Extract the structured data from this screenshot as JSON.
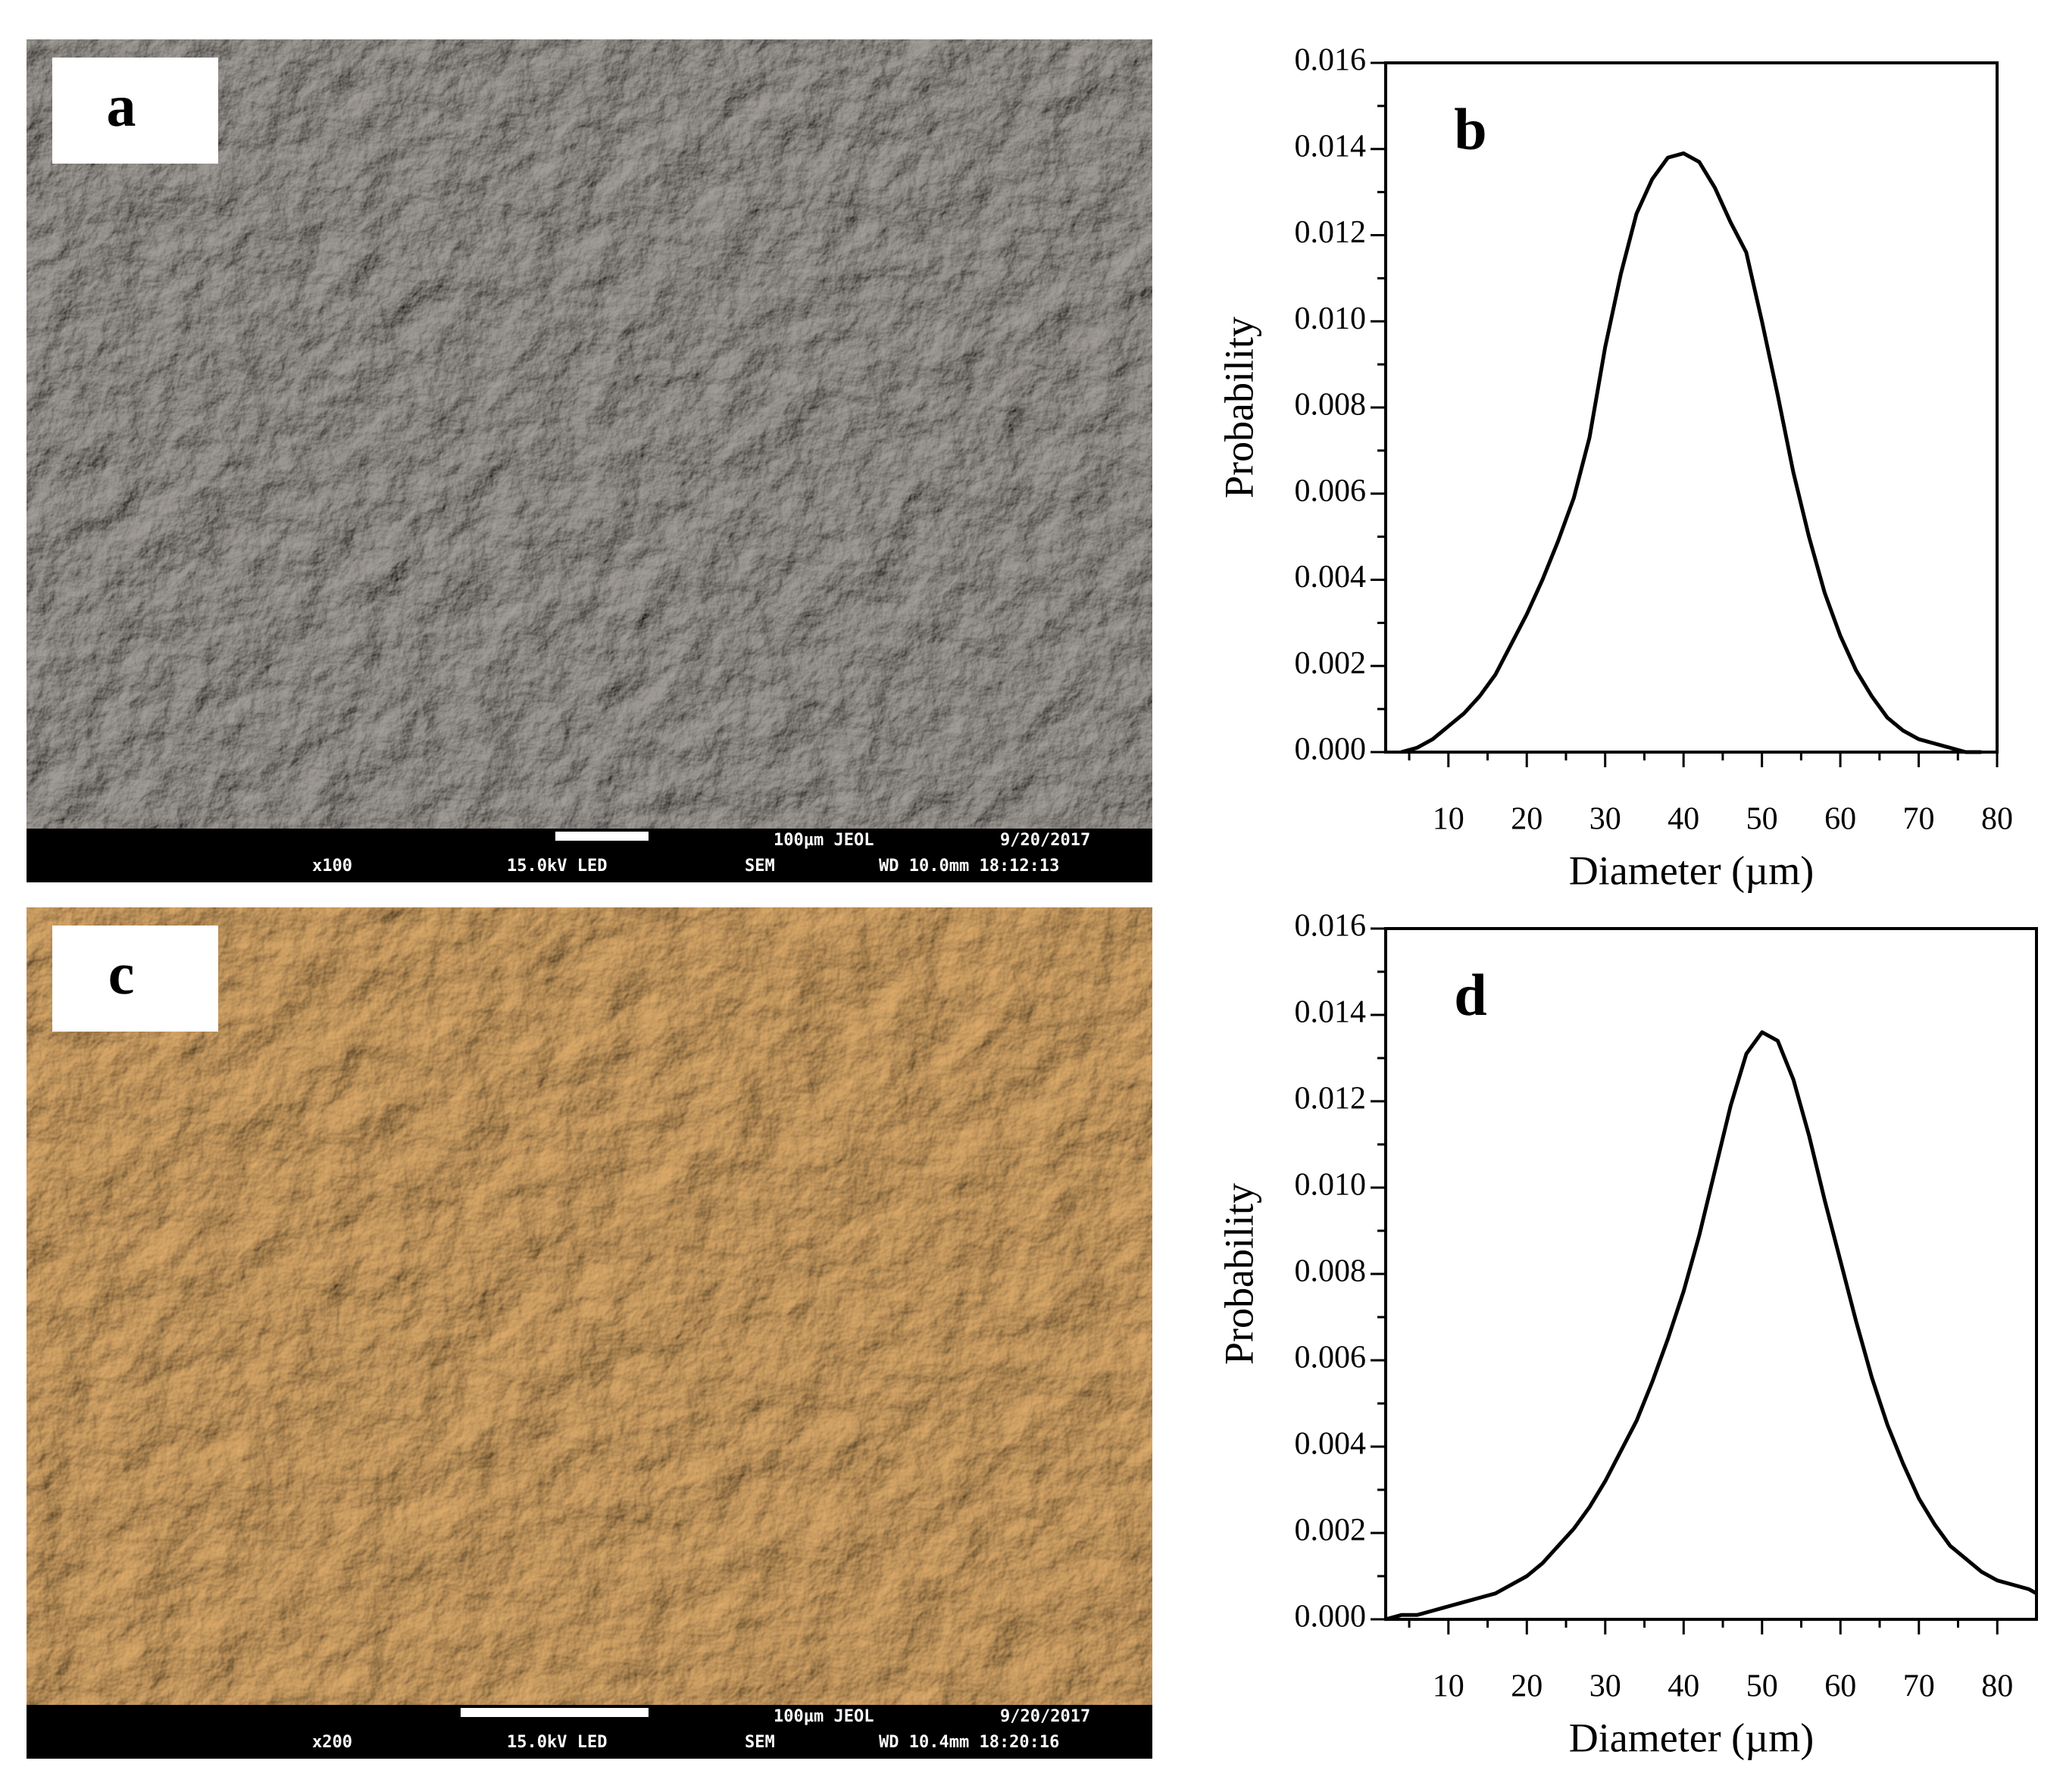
{
  "panels": [
    {
      "label": "a",
      "info_bar": [
        "100µm JEOL",
        "9/20/2017",
        "x100",
        "15.0kV LED",
        "SEM",
        "WD 10.0mm 18:12:13"
      ]
    },
    {
      "label": "c",
      "info_bar": [
        "100µm JEOL",
        "9/20/2017",
        "x200",
        "15.0kV LED",
        "SEM",
        "WD 10.4mm 18:20:16"
      ]
    }
  ],
  "chart_data": [
    {
      "type": "line",
      "panel_label": "b",
      "x_label": "Diameter (µm)",
      "y_label": "Probability",
      "color": "#000000",
      "xlim": [
        2,
        80
      ],
      "xticks": [
        10,
        20,
        30,
        40,
        50,
        60,
        70,
        80
      ],
      "xminorticks": [
        5,
        15,
        25,
        35,
        45,
        55,
        65,
        75
      ],
      "ylim": [
        0,
        0.016
      ],
      "yticks": [
        {
          "value": 0,
          "label": "0.000"
        },
        {
          "value": 0.002,
          "label": "0.002"
        },
        {
          "value": 0.004,
          "label": "0.004"
        },
        {
          "value": 0.006,
          "label": "0.006"
        },
        {
          "value": 0.008,
          "label": "0.008"
        },
        {
          "value": 0.01,
          "label": "0.010"
        },
        {
          "value": 0.012,
          "label": "0.012"
        },
        {
          "value": 0.014,
          "label": "0.014"
        },
        {
          "value": 0.016,
          "label": "0.016"
        }
      ],
      "yminorticks": [
        0.001,
        0.003,
        0.005,
        0.007,
        0.009,
        0.011,
        0.013,
        0.015
      ],
      "x": [
        4,
        6,
        8,
        10,
        12,
        14,
        16,
        18,
        20,
        22,
        24,
        26,
        28,
        30,
        32,
        34,
        36,
        38,
        40,
        42,
        44,
        46,
        48,
        50,
        52,
        54,
        56,
        58,
        60,
        62,
        64,
        66,
        68,
        70,
        72,
        74,
        76,
        78
      ],
      "values": [
        0.0,
        0.0001,
        0.0003,
        0.0006,
        0.0009,
        0.0013,
        0.0018,
        0.0025,
        0.0032,
        0.004,
        0.0049,
        0.0059,
        0.0073,
        0.0094,
        0.0111,
        0.0125,
        0.0133,
        0.0138,
        0.0139,
        0.0137,
        0.0131,
        0.0123,
        0.0116,
        0.01,
        0.0083,
        0.0065,
        0.005,
        0.0037,
        0.0027,
        0.0019,
        0.0013,
        0.0008,
        0.0005,
        0.0003,
        0.0002,
        0.0001,
        0.0,
        0.0
      ]
    },
    {
      "type": "line",
      "panel_label": "d",
      "x_label": "Diameter (µm)",
      "y_label": "Probability",
      "color": "#000000",
      "xlim": [
        2,
        85
      ],
      "xticks": [
        10,
        20,
        30,
        40,
        50,
        60,
        70,
        80
      ],
      "xminorticks": [
        5,
        15,
        25,
        35,
        45,
        55,
        65,
        75
      ],
      "ylim": [
        0,
        0.016
      ],
      "yticks": [
        {
          "value": 0,
          "label": "0.000"
        },
        {
          "value": 0.002,
          "label": "0.002"
        },
        {
          "value": 0.004,
          "label": "0.004"
        },
        {
          "value": 0.006,
          "label": "0.006"
        },
        {
          "value": 0.008,
          "label": "0.008"
        },
        {
          "value": 0.01,
          "label": "0.010"
        },
        {
          "value": 0.012,
          "label": "0.012"
        },
        {
          "value": 0.014,
          "label": "0.014"
        },
        {
          "value": 0.016,
          "label": "0.016"
        }
      ],
      "yminorticks": [
        0.001,
        0.003,
        0.005,
        0.007,
        0.009,
        0.011,
        0.013,
        0.015
      ],
      "x": [
        2,
        4,
        6,
        8,
        10,
        12,
        14,
        16,
        18,
        20,
        22,
        24,
        26,
        28,
        30,
        32,
        34,
        36,
        38,
        40,
        42,
        44,
        46,
        48,
        50,
        52,
        54,
        56,
        58,
        60,
        62,
        64,
        66,
        68,
        70,
        72,
        74,
        76,
        78,
        80,
        82,
        84,
        85
      ],
      "values": [
        0.0,
        0.0001,
        0.0001,
        0.0002,
        0.0003,
        0.0004,
        0.0005,
        0.0006,
        0.0008,
        0.001,
        0.0013,
        0.0017,
        0.0021,
        0.0026,
        0.0032,
        0.0039,
        0.0046,
        0.0055,
        0.0065,
        0.0076,
        0.0089,
        0.0104,
        0.0119,
        0.0131,
        0.0136,
        0.0134,
        0.0125,
        0.0112,
        0.0097,
        0.0083,
        0.0069,
        0.0056,
        0.0045,
        0.0036,
        0.0028,
        0.0022,
        0.0017,
        0.0014,
        0.0011,
        0.0009,
        0.0008,
        0.0007,
        0.0006
      ]
    }
  ]
}
